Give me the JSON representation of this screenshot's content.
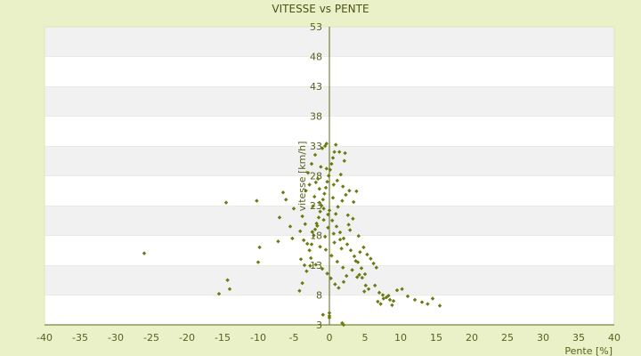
{
  "chart_data": {
    "type": "scatter",
    "title": "VITESSE vs PENTE",
    "xlabel": "Pente [%]",
    "ylabel": "vitesse [km/h]",
    "xlim": [
      -40,
      40
    ],
    "ylim": [
      3,
      53
    ],
    "x_ticks": [
      "-40",
      "-35",
      "-30",
      "-25",
      "-20",
      "-15",
      "-10",
      "-5",
      "0",
      "5",
      "10",
      "15",
      "20",
      "25",
      "30",
      "35",
      "40"
    ],
    "y_ticks": [
      "53",
      "48",
      "43",
      "38",
      "33",
      "28",
      "23",
      "18",
      "13",
      "8",
      "3"
    ],
    "grid": "horizontal bands",
    "series": [
      {
        "marker_color": "#6b7a12",
        "points": [
          [
            -26,
            15.0
          ],
          [
            -15.5,
            8.2
          ],
          [
            -14.5,
            23.5
          ],
          [
            -14.3,
            10.5
          ],
          [
            -14.0,
            9.0
          ],
          [
            -10.2,
            23.8
          ],
          [
            -10.0,
            13.5
          ],
          [
            -9.8,
            16.0
          ],
          [
            -7.2,
            17.0
          ],
          [
            -7.0,
            21.0
          ],
          [
            -6.5,
            25.2
          ],
          [
            -6.1,
            24.0
          ],
          [
            -5.5,
            19.5
          ],
          [
            -5.2,
            17.5
          ],
          [
            -5.0,
            22.5
          ],
          [
            -4.2,
            8.7
          ],
          [
            -4.0,
            14.0
          ],
          [
            -3.8,
            10.0
          ],
          [
            -3.5,
            13.0
          ],
          [
            -3.2,
            12.0
          ],
          [
            -2.8,
            15.5
          ],
          [
            -2.5,
            16.5
          ],
          [
            -2.2,
            18.0
          ],
          [
            -2.0,
            19.0
          ],
          [
            -1.8,
            20.0
          ],
          [
            -1.5,
            21.0
          ],
          [
            -1.3,
            22.0
          ],
          [
            -1.1,
            23.0
          ],
          [
            -0.9,
            24.0
          ],
          [
            -0.7,
            25.0
          ],
          [
            -0.5,
            26.0
          ],
          [
            -0.3,
            27.0
          ],
          [
            -0.1,
            28.0
          ],
          [
            0.1,
            29.0
          ],
          [
            0.3,
            30.0
          ],
          [
            0.5,
            31.0
          ],
          [
            0.7,
            32.0
          ],
          [
            -0.6,
            33.0
          ],
          [
            -2.0,
            31.5
          ],
          [
            -2.5,
            30.0
          ],
          [
            -3.0,
            28.5
          ],
          [
            -1.2,
            29.5
          ],
          [
            -1.6,
            27.5
          ],
          [
            -2.8,
            26.5
          ],
          [
            -3.3,
            25.5
          ],
          [
            -2.1,
            24.5
          ],
          [
            -1.4,
            23.5
          ],
          [
            -0.8,
            22.5
          ],
          [
            -0.2,
            21.5
          ],
          [
            0.4,
            20.5
          ],
          [
            1.0,
            19.5
          ],
          [
            1.5,
            18.5
          ],
          [
            2.0,
            17.5
          ],
          [
            2.5,
            16.5
          ],
          [
            3.0,
            15.5
          ],
          [
            3.5,
            14.5
          ],
          [
            4.0,
            13.5
          ],
          [
            4.5,
            12.5
          ],
          [
            5.0,
            11.5
          ],
          [
            1.2,
            22.8
          ],
          [
            1.8,
            23.8
          ],
          [
            2.3,
            24.8
          ],
          [
            2.8,
            25.5
          ],
          [
            0.6,
            26.5
          ],
          [
            1.1,
            27.2
          ],
          [
            1.6,
            28.2
          ],
          [
            2.1,
            30.5
          ],
          [
            1.4,
            32.0
          ],
          [
            2.2,
            31.8
          ],
          [
            0.9,
            33.2
          ],
          [
            -0.4,
            33.4
          ],
          [
            -1.0,
            32.6
          ],
          [
            -3.8,
            21.2
          ],
          [
            -4.1,
            18.7
          ],
          [
            -3.6,
            17.2
          ],
          [
            -2.6,
            14.2
          ],
          [
            -1.9,
            13.1
          ],
          [
            -1.0,
            12.4
          ],
          [
            -0.3,
            11.6
          ],
          [
            0.2,
            10.8
          ],
          [
            0.8,
            9.8
          ],
          [
            1.3,
            9.2
          ],
          [
            2.0,
            10.2
          ],
          [
            2.4,
            11.2
          ],
          [
            3.2,
            12.2
          ],
          [
            3.7,
            13.7
          ],
          [
            4.3,
            15.2
          ],
          [
            4.8,
            16.0
          ],
          [
            5.3,
            14.8
          ],
          [
            5.8,
            14.1
          ],
          [
            6.2,
            13.3
          ],
          [
            6.6,
            12.6
          ],
          [
            3.9,
            11.0
          ],
          [
            4.2,
            11.4
          ],
          [
            4.6,
            10.9
          ],
          [
            5.1,
            9.6
          ],
          [
            5.5,
            9.0
          ],
          [
            4.9,
            8.6
          ],
          [
            6.4,
            9.6
          ],
          [
            7.0,
            8.4
          ],
          [
            7.5,
            8.0
          ],
          [
            8.0,
            7.6
          ],
          [
            8.5,
            7.2
          ],
          [
            9.0,
            7.0
          ],
          [
            8.3,
            7.9
          ],
          [
            7.6,
            7.4
          ],
          [
            9.5,
            8.8
          ],
          [
            10.2,
            9.0
          ],
          [
            11.0,
            7.8
          ],
          [
            12.0,
            7.2
          ],
          [
            13.0,
            6.8
          ],
          [
            13.8,
            6.5
          ],
          [
            14.5,
            7.4
          ],
          [
            15.5,
            6.2
          ],
          [
            6.8,
            6.9
          ],
          [
            7.2,
            6.5
          ],
          [
            8.8,
            6.3
          ],
          [
            0.0,
            5.0
          ],
          [
            0.0,
            4.5
          ],
          [
            0.0,
            4.2
          ],
          [
            -0.9,
            4.7
          ],
          [
            1.8,
            3.3
          ],
          [
            2.0,
            3.0
          ],
          [
            -0.2,
            19.3
          ],
          [
            0.6,
            18.3
          ],
          [
            1.5,
            17.3
          ],
          [
            2.7,
            19.8
          ],
          [
            3.3,
            20.8
          ],
          [
            0.9,
            21.6
          ],
          [
            0.0,
            22.2
          ],
          [
            -0.8,
            20.6
          ],
          [
            -1.7,
            19.6
          ],
          [
            -2.4,
            18.6
          ],
          [
            -3.1,
            16.6
          ],
          [
            -0.5,
            15.6
          ],
          [
            0.3,
            14.6
          ],
          [
            1.1,
            13.6
          ],
          [
            1.9,
            12.6
          ],
          [
            2.6,
            21.4
          ],
          [
            3.4,
            23.6
          ],
          [
            3.8,
            25.4
          ],
          [
            -1.4,
            25.8
          ],
          [
            -2.3,
            22.9
          ],
          [
            -0.6,
            17.8
          ],
          [
            0.7,
            16.8
          ],
          [
            1.7,
            15.8
          ],
          [
            2.9,
            18.9
          ],
          [
            4.1,
            17.9
          ],
          [
            -1.9,
            26.9
          ],
          [
            -0.4,
            29.2
          ],
          [
            0.5,
            24.3
          ],
          [
            1.9,
            26.2
          ],
          [
            -2.7,
            12.9
          ],
          [
            -1.3,
            16.1
          ],
          [
            -3.4,
            19.9
          ]
        ]
      }
    ]
  }
}
